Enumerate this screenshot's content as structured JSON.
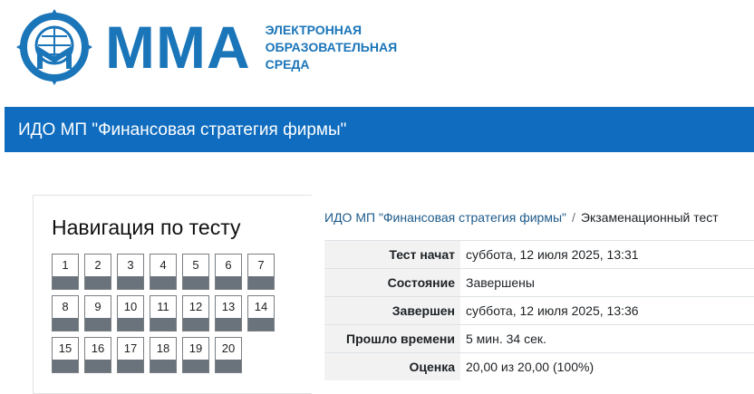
{
  "logo": {
    "text": "ММА",
    "subtitle": [
      "ЭЛЕКТРОННАЯ",
      "ОБРАЗОВАТЕЛЬНАЯ",
      "СРЕДА"
    ],
    "color": "#1a75b9"
  },
  "banner": {
    "title": "ИДО МП \"Финансовая стратегия фирмы\"",
    "color": "#0f6cbf"
  },
  "navigation": {
    "title": "Навигация по тесту",
    "questions": [
      "1",
      "2",
      "3",
      "4",
      "5",
      "6",
      "7",
      "8",
      "9",
      "10",
      "11",
      "12",
      "13",
      "14",
      "15",
      "16",
      "17",
      "18",
      "19",
      "20"
    ]
  },
  "breadcrumb": {
    "course": "ИДО МП \"Финансовая стратегия фирмы\"",
    "separator": "/",
    "current": "Экзаменационный тест"
  },
  "summary": [
    {
      "label": "Тест начат",
      "value": "суббота, 12 июля 2025, 13:31"
    },
    {
      "label": "Состояние",
      "value": "Завершены"
    },
    {
      "label": "Завершен",
      "value": "суббота, 12 июля 2025, 13:36"
    },
    {
      "label": "Прошло времени",
      "value": "5 мин. 34 сек."
    },
    {
      "label": "Оценка",
      "value": "20,00 из 20,00 (100%)"
    }
  ]
}
